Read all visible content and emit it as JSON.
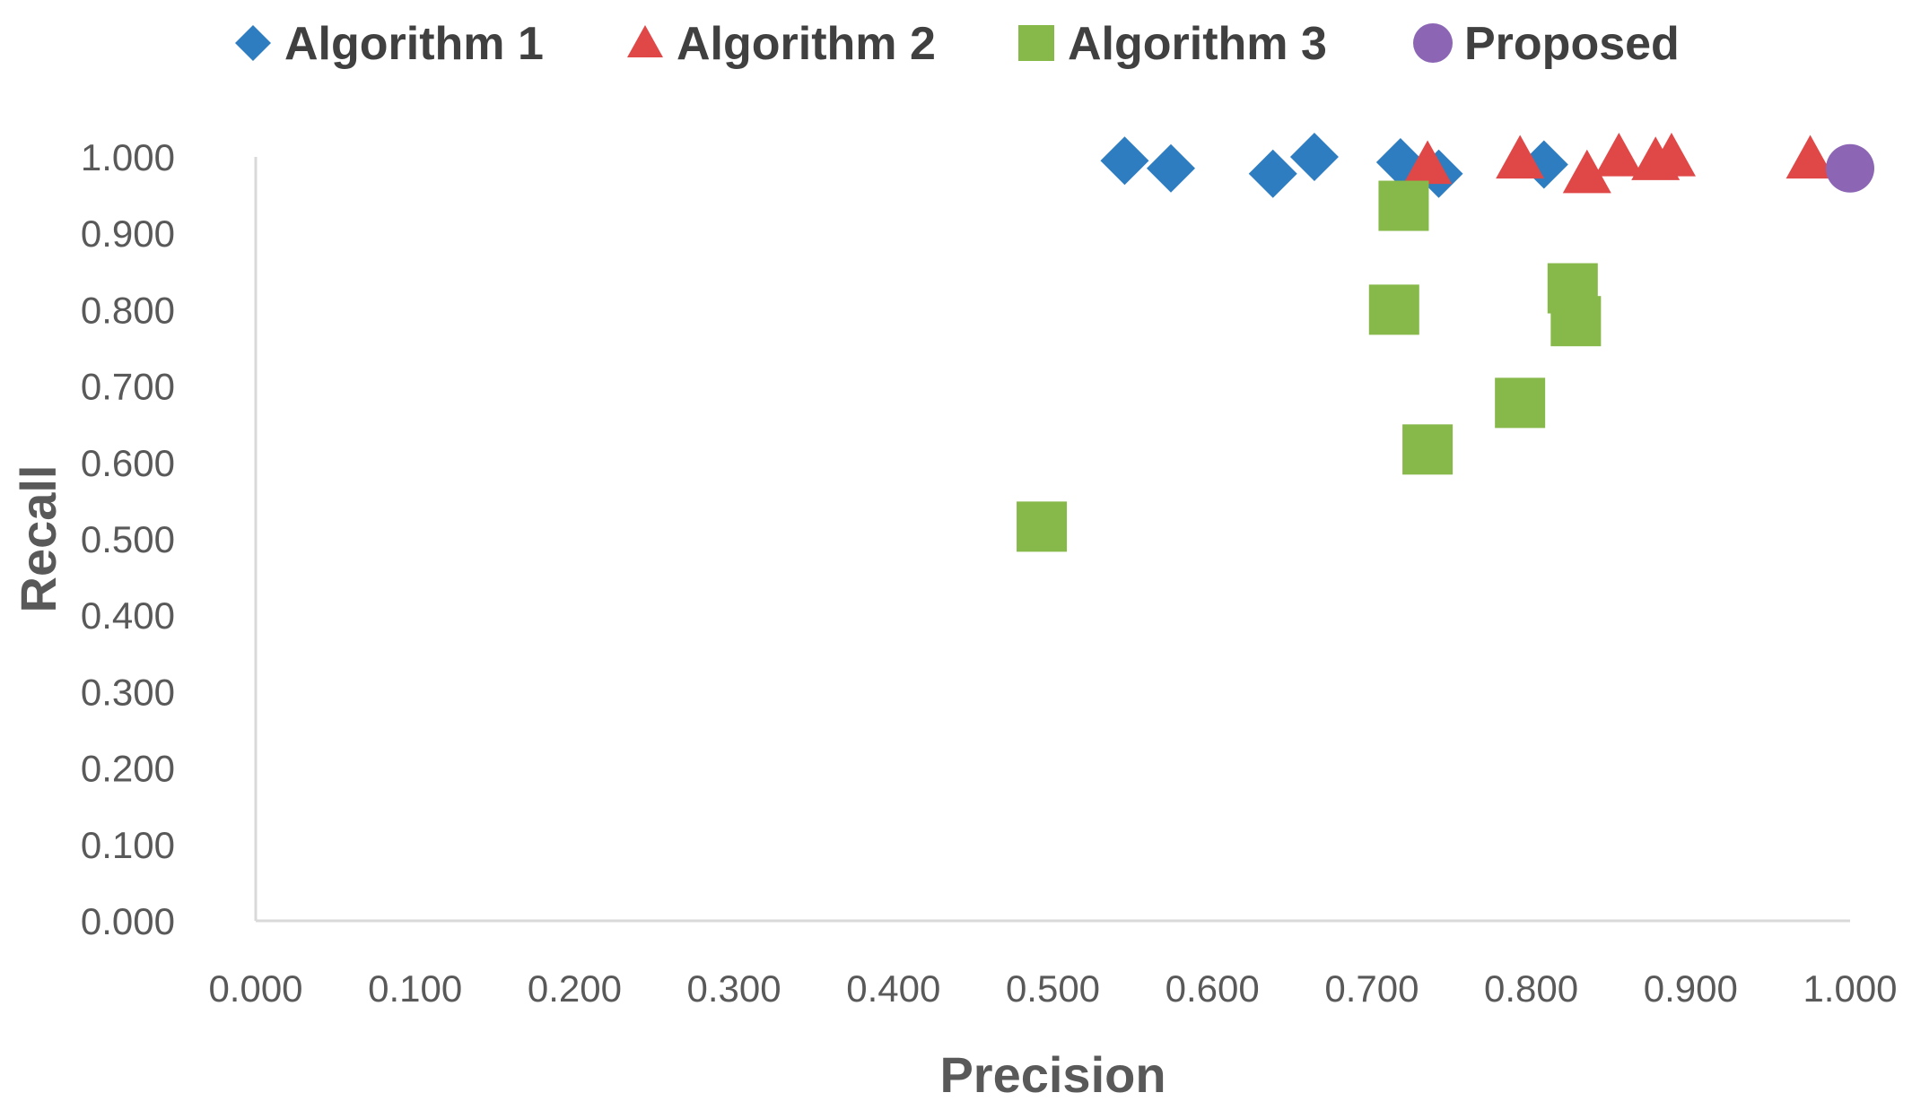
{
  "chart_data": {
    "type": "scatter",
    "title": "",
    "xlabel": "Precision",
    "ylabel": "Recall",
    "xlim": [
      0,
      1
    ],
    "ylim": [
      0,
      1
    ],
    "x_ticks": [
      "0.000",
      "0.100",
      "0.200",
      "0.300",
      "0.400",
      "0.500",
      "0.600",
      "0.700",
      "0.800",
      "0.900",
      "1.000"
    ],
    "y_ticks": [
      "0.000",
      "0.100",
      "0.200",
      "0.300",
      "0.400",
      "0.500",
      "0.600",
      "0.700",
      "0.800",
      "0.900",
      "1.000"
    ],
    "grid": false,
    "legend_position": "top",
    "series": [
      {
        "name": "Algorithm 1",
        "marker": "diamond",
        "color": "#2E7DC1",
        "points": [
          [
            0.545,
            0.995
          ],
          [
            0.574,
            0.985
          ],
          [
            0.638,
            0.978
          ],
          [
            0.664,
            1.0
          ],
          [
            0.718,
            0.993
          ],
          [
            0.742,
            0.978
          ],
          [
            0.808,
            0.99
          ]
        ]
      },
      {
        "name": "Algorithm 2",
        "marker": "triangle",
        "color": "#E04848",
        "points": [
          [
            0.735,
            0.99
          ],
          [
            0.793,
            0.997
          ],
          [
            0.835,
            0.978
          ],
          [
            0.855,
            1.0
          ],
          [
            0.878,
            0.995
          ],
          [
            0.888,
            1.0
          ],
          [
            0.975,
            0.997
          ]
        ]
      },
      {
        "name": "Algorithm 3",
        "marker": "square",
        "color": "#86B84A",
        "points": [
          [
            0.493,
            0.516
          ],
          [
            0.714,
            0.8
          ],
          [
            0.72,
            0.936
          ],
          [
            0.735,
            0.617
          ],
          [
            0.793,
            0.678
          ],
          [
            0.826,
            0.828
          ],
          [
            0.828,
            0.785
          ]
        ]
      },
      {
        "name": "Proposed",
        "marker": "circle",
        "color": "#8C66B5",
        "points": [
          [
            1.0,
            0.985
          ]
        ]
      }
    ]
  }
}
